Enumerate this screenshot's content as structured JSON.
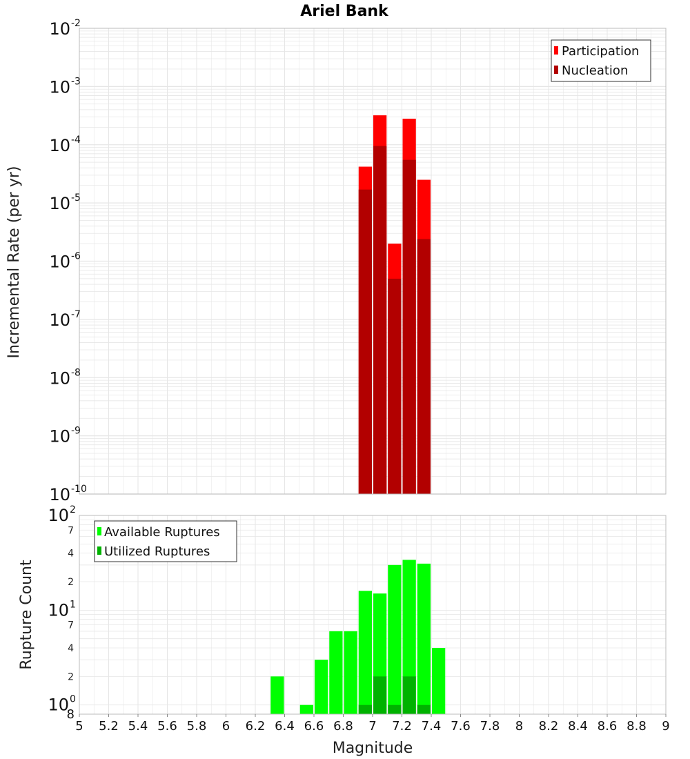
{
  "title": "Ariel Bank",
  "colors": {
    "participation": "#ff0000",
    "nucleation": "#b20000",
    "available": "#00ff00",
    "utilized": "#00b200",
    "grid": "#e6e6e6",
    "frame": "#bbbbbb"
  },
  "chart_data": [
    {
      "type": "bar",
      "panel": "top",
      "title": "Ariel Bank",
      "xlabel": "",
      "ylabel": "Incremental Rate (per yr)",
      "yscale": "log",
      "xlim": [
        5,
        9
      ],
      "ylim": [
        1e-10,
        0.01
      ],
      "y_tick_exponents": [
        -10,
        -9,
        -8,
        -7,
        -6,
        -5,
        -4,
        -3,
        -2
      ],
      "bin_width": 0.1,
      "legend_position": "top-right",
      "grid": true,
      "series": [
        {
          "name": "Participation",
          "color": "#ff0000",
          "x": [
            6.95,
            7.05,
            7.15,
            7.25,
            7.35
          ],
          "values": [
            4.2e-05,
            0.00032,
            2e-06,
            0.00028,
            2.5e-05
          ]
        },
        {
          "name": "Nucleation",
          "color": "#b20000",
          "x": [
            6.95,
            7.05,
            7.15,
            7.25,
            7.35
          ],
          "values": [
            1.7e-05,
            9.5e-05,
            5e-07,
            5.5e-05,
            2.4e-06
          ]
        }
      ]
    },
    {
      "type": "bar",
      "panel": "bottom",
      "xlabel": "Magnitude",
      "ylabel": "Rupture Count",
      "yscale": "log",
      "xlim": [
        5,
        9
      ],
      "ylim": [
        0.8,
        100
      ],
      "x_ticks": [
        "5",
        "5.2",
        "5.4",
        "5.6",
        "5.8",
        "6",
        "6.2",
        "6.4",
        "6.6",
        "6.8",
        "7",
        "7.2",
        "7.4",
        "7.6",
        "7.8",
        "8",
        "8.2",
        "8.4",
        "8.6",
        "8.8",
        "9"
      ],
      "y_major_exponents": [
        0,
        1,
        2
      ],
      "y_minor_labels": [
        "2",
        "4",
        "7",
        "2",
        "4",
        "7"
      ],
      "y_bottom_label": "8",
      "bin_width": 0.1,
      "legend_position": "top-left",
      "grid": true,
      "series": [
        {
          "name": "Available Ruptures",
          "color": "#00ff00",
          "x": [
            6.35,
            6.55,
            6.65,
            6.75,
            6.85,
            6.95,
            7.05,
            7.15,
            7.25,
            7.35,
            7.45
          ],
          "values": [
            2,
            1,
            3,
            6,
            6,
            16,
            15,
            30,
            34,
            31,
            4
          ]
        },
        {
          "name": "Utilized Ruptures",
          "color": "#00b200",
          "x": [
            6.95,
            7.05,
            7.15,
            7.25,
            7.35
          ],
          "values": [
            1,
            2,
            1,
            2,
            1
          ]
        }
      ]
    }
  ]
}
